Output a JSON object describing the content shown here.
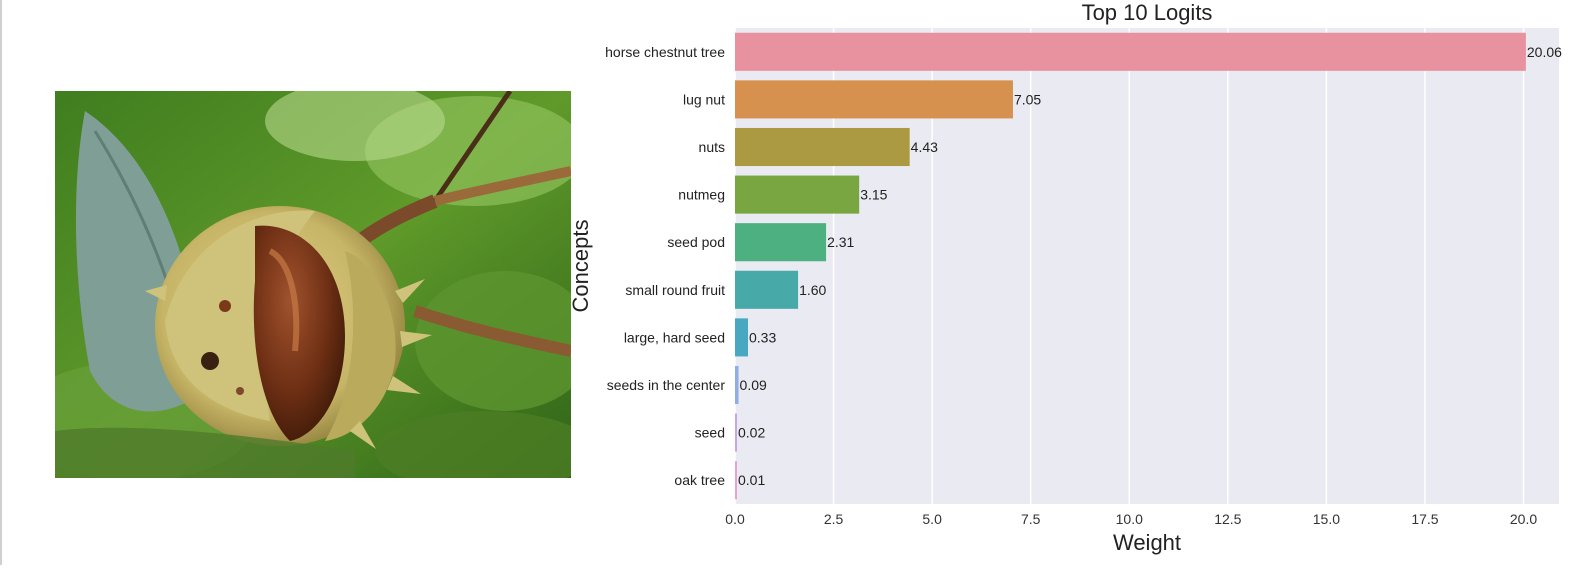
{
  "photo": {
    "alt": "Horse chestnut in its spiky husk among green leaves"
  },
  "chart_data": {
    "type": "bar",
    "orientation": "horizontal",
    "title": "Top 10 Logits",
    "xlabel": "Weight",
    "ylabel": "Concepts",
    "xlim": [
      0,
      20.9
    ],
    "xticks": [
      "0.0",
      "2.5",
      "5.0",
      "7.5",
      "10.0",
      "12.5",
      "15.0",
      "17.5",
      "20.0"
    ],
    "grid": true,
    "categories": [
      "horse chestnut tree",
      "lug nut",
      "nuts",
      "nutmeg",
      "seed pod",
      "small round fruit",
      "large, hard seed",
      "seeds in the center",
      "seed",
      "oak tree"
    ],
    "values": [
      20.06,
      7.05,
      4.43,
      3.15,
      2.31,
      1.6,
      0.33,
      0.09,
      0.02,
      0.01
    ],
    "value_labels": [
      "20.06",
      "7.05",
      "4.43",
      "3.15",
      "2.31",
      "1.60",
      "0.33",
      "0.09",
      "0.02",
      "0.01"
    ],
    "colors": [
      "#e8929f",
      "#d6914e",
      "#ab9a42",
      "#7aa642",
      "#4db080",
      "#48aaa8",
      "#48a8c2",
      "#8faee6",
      "#c8a6e4",
      "#e8a2d2"
    ],
    "plot_background": "#eaeaf2",
    "grid_color": "#ffffff"
  }
}
